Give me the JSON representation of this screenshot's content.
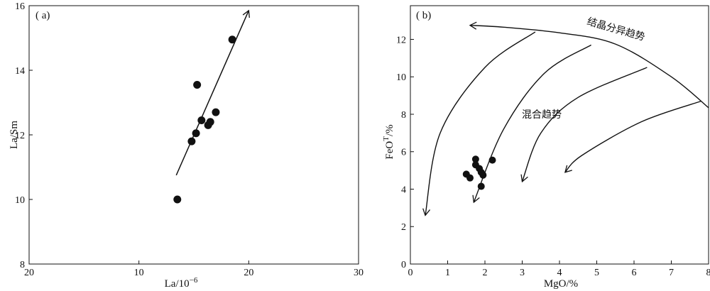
{
  "chart_data": [
    {
      "type": "scatter",
      "panel_label": "( a)",
      "xlabel": "La/10",
      "xlabel_superscript": "−6",
      "ylabel": "La/Sm",
      "x_ticks": [
        "20",
        "10",
        "20",
        "30"
      ],
      "y_ticks": [
        "8",
        "10",
        "12",
        "14",
        "16"
      ],
      "xlim": [
        0,
        30
      ],
      "ylim": [
        8,
        16
      ],
      "points": [
        {
          "x": 13.5,
          "y": 10.0
        },
        {
          "x": 14.8,
          "y": 11.8
        },
        {
          "x": 15.2,
          "y": 12.05
        },
        {
          "x": 15.7,
          "y": 12.45
        },
        {
          "x": 16.3,
          "y": 12.3
        },
        {
          "x": 16.5,
          "y": 12.4
        },
        {
          "x": 17.0,
          "y": 12.7
        },
        {
          "x": 15.3,
          "y": 13.55
        },
        {
          "x": 18.5,
          "y": 14.95
        }
      ],
      "trend_arrow": {
        "from": [
          13.4,
          10.75
        ],
        "to": [
          20.0,
          15.85
        ]
      }
    },
    {
      "type": "scatter",
      "panel_label": "( b)",
      "xlabel": "MgO/%",
      "ylabel": "FeO",
      "ylabel_superscript": "T",
      "ylabel_suffix": "/%",
      "x_ticks": [
        "0",
        "1",
        "2",
        "3",
        "4",
        "5",
        "6",
        "7",
        "8"
      ],
      "y_ticks": [
        "0",
        "2",
        "4",
        "6",
        "8",
        "10",
        "12"
      ],
      "xlim": [
        0,
        8
      ],
      "ylim": [
        0,
        13.8
      ],
      "points": [
        {
          "x": 1.5,
          "y": 4.8
        },
        {
          "x": 1.6,
          "y": 4.6
        },
        {
          "x": 1.75,
          "y": 5.6
        },
        {
          "x": 1.75,
          "y": 5.3
        },
        {
          "x": 1.85,
          "y": 5.1
        },
        {
          "x": 1.9,
          "y": 4.9
        },
        {
          "x": 1.95,
          "y": 4.75
        },
        {
          "x": 1.9,
          "y": 4.15
        },
        {
          "x": 2.2,
          "y": 5.55
        }
      ],
      "annotations": {
        "crystallization": "结晶分异趋势",
        "mixing": "混合趋势"
      },
      "crystallization_curve": [
        [
          8.0,
          8.35
        ],
        [
          7.0,
          10.0
        ],
        [
          5.5,
          11.75
        ],
        [
          4.0,
          12.35
        ],
        [
          2.5,
          12.65
        ],
        [
          1.6,
          12.75
        ]
      ],
      "mixing_curves": [
        [
          [
            3.35,
            12.4
          ],
          [
            2.0,
            10.5
          ],
          [
            0.8,
            7.0
          ],
          [
            0.4,
            2.6
          ]
        ],
        [
          [
            4.85,
            11.7
          ],
          [
            3.6,
            10.2
          ],
          [
            2.5,
            7.2
          ],
          [
            1.7,
            3.3
          ]
        ],
        [
          [
            6.35,
            10.5
          ],
          [
            4.5,
            8.9
          ],
          [
            3.5,
            7.0
          ],
          [
            3.0,
            4.4
          ]
        ],
        [
          [
            7.8,
            8.7
          ],
          [
            6.2,
            7.6
          ],
          [
            4.6,
            5.8
          ],
          [
            4.15,
            4.9
          ]
        ]
      ]
    }
  ]
}
